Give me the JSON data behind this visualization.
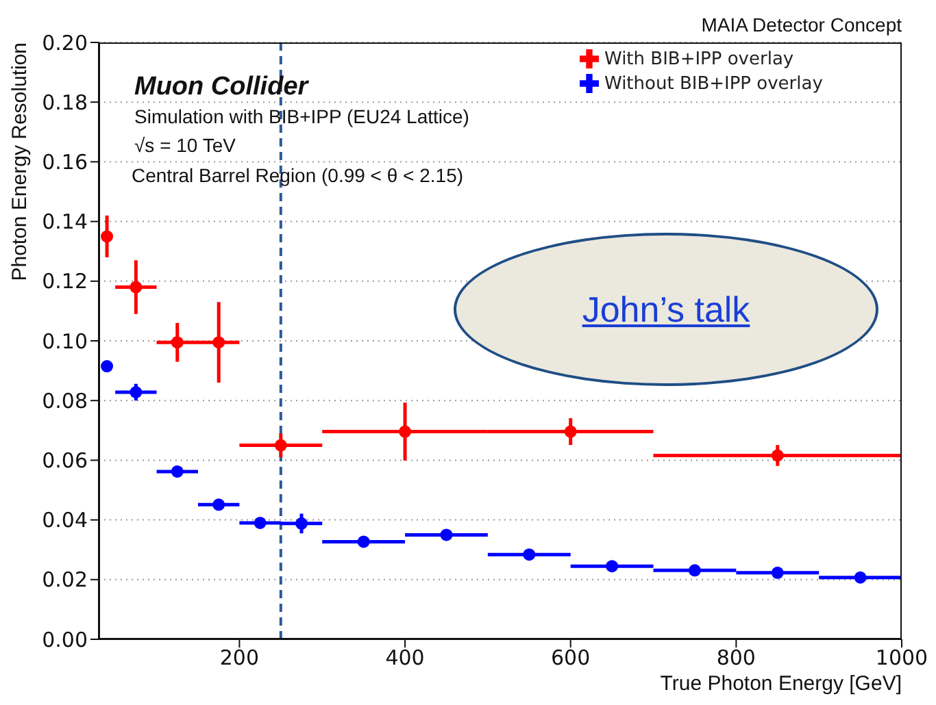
{
  "chart_data": {
    "type": "scatter",
    "title": "MAIA Detector Concept",
    "xlabel": "True Photon Energy [GeV]",
    "ylabel": "Photon Energy Resolution",
    "annotations": [
      "Muon Collider",
      "Simulation with BIB+IPP (EU24 Lattice)",
      "√s = 10 TeV",
      "Central Barrel Region (0.99 < θ < 2.15)",
      "John’s talk"
    ],
    "xlim": [
      30,
      1000
    ],
    "xticks": [
      200,
      400,
      600,
      800,
      1000
    ],
    "ylim": [
      0,
      0.2
    ],
    "yticks": [
      {
        "value": 0,
        "label": "0.00"
      },
      {
        "value": 0.02,
        "label": "0.02"
      },
      {
        "value": 0.04,
        "label": "0.04"
      },
      {
        "value": 0.06,
        "label": "0.06"
      },
      {
        "value": 0.08,
        "label": "0.08"
      },
      {
        "value": 0.1,
        "label": "0.10"
      },
      {
        "value": 0.12,
        "label": "0.12"
      },
      {
        "value": 0.14,
        "label": "0.14"
      },
      {
        "value": 0.16,
        "label": "0.16"
      },
      {
        "value": 0.18,
        "label": "0.18"
      },
      {
        "value": 0.2,
        "label": "0.20"
      }
    ],
    "grid": "y",
    "legend": "top right",
    "marker": "circle",
    "ref_lines": [
      {
        "axis": "x",
        "value": 250,
        "color": "#2a5a9a",
        "line_style": "dashed"
      }
    ],
    "series": [
      {
        "name": "With BIB+IPP overlay",
        "color": "#ff0000",
        "x": [
          40,
          75,
          125,
          175,
          250,
          400,
          600,
          850
        ],
        "values": [
          0.135,
          0.118,
          0.0995,
          0.0995,
          0.065,
          0.0696,
          0.0696,
          0.0616
        ],
        "errors": [
          0.007,
          0.009,
          0.0065,
          0.0135,
          0.004,
          0.0097,
          0.0045,
          0.0035
        ],
        "xerrors": [
          null,
          25,
          25,
          25,
          50,
          100,
          100,
          150
        ]
      },
      {
        "name": "Without BIB+IPP overlay",
        "color": "#0000ff",
        "x": [
          40,
          75,
          125,
          175,
          225,
          275,
          350,
          450,
          550,
          650,
          750,
          850,
          950
        ],
        "values": [
          0.0915,
          0.0828,
          0.0562,
          0.0451,
          0.039,
          0.0388,
          0.0327,
          0.035,
          0.0284,
          0.0245,
          0.0231,
          0.0223,
          0.0207
        ],
        "errors": [
          0.001,
          0.0028,
          0.001,
          0.001,
          0.0005,
          0.0033,
          0.0005,
          0.0015,
          0.0005,
          0.0005,
          0.0005,
          0.001,
          0.0005
        ],
        "xerrors": [
          null,
          25,
          25,
          25,
          25,
          25,
          50,
          50,
          50,
          50,
          50,
          50,
          50
        ]
      }
    ]
  }
}
